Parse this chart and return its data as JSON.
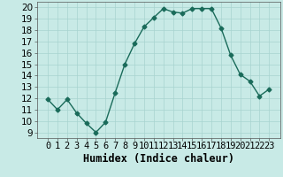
{
  "title": "",
  "xlabel": "Humidex (Indice chaleur)",
  "x": [
    0,
    1,
    2,
    3,
    4,
    5,
    6,
    7,
    8,
    9,
    10,
    11,
    12,
    13,
    14,
    15,
    16,
    17,
    18,
    19,
    20,
    21,
    22,
    23
  ],
  "y": [
    11.9,
    11.0,
    11.9,
    10.7,
    9.8,
    9.0,
    9.9,
    12.5,
    15.0,
    16.8,
    18.3,
    19.1,
    19.9,
    19.6,
    19.5,
    19.9,
    19.9,
    19.9,
    18.2,
    15.8,
    14.1,
    13.5,
    12.2,
    12.8
  ],
  "line_color": "#1a6b5a",
  "marker": "D",
  "marker_size": 2.5,
  "linewidth": 1.0,
  "bg_color": "#c8eae6",
  "grid_color": "#a8d4d0",
  "ylim": [
    8.5,
    20.5
  ],
  "yticks": [
    9,
    10,
    11,
    12,
    13,
    14,
    15,
    16,
    17,
    18,
    19,
    20
  ],
  "tick_fontsize": 7.5,
  "xlabel_fontsize": 8.5
}
